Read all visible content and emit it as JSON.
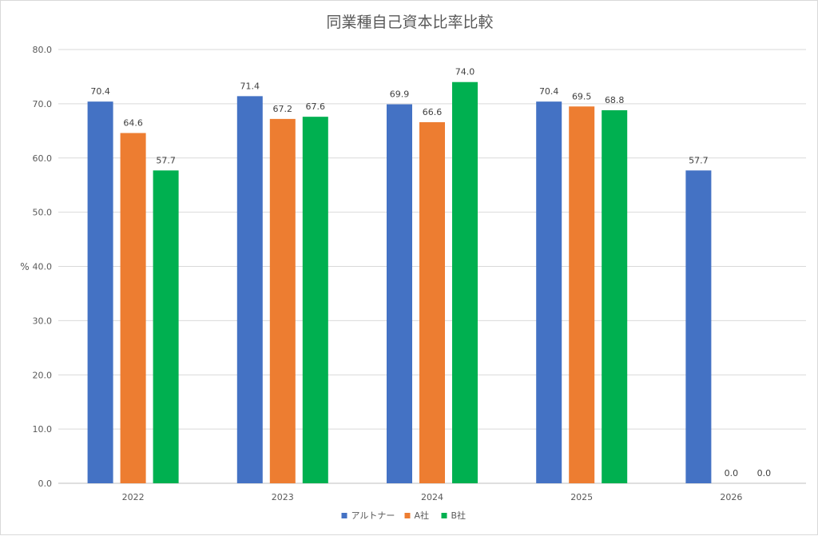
{
  "chart_data": {
    "type": "bar",
    "title": "同業種自己資本比率比較",
    "ylabel": "%",
    "xlabel": "",
    "categories": [
      "2022",
      "2023",
      "2024",
      "2025",
      "2026"
    ],
    "series": [
      {
        "name": "アルトナー",
        "color": "#4472C4",
        "values": [
          70.4,
          71.4,
          69.9,
          70.4,
          57.7
        ]
      },
      {
        "name": "A社",
        "color": "#ED7D31",
        "values": [
          64.6,
          67.2,
          66.6,
          69.5,
          0.0
        ]
      },
      {
        "name": "B社",
        "color": "#00B050",
        "values": [
          57.7,
          67.6,
          74.0,
          68.8,
          0.0
        ]
      }
    ],
    "ylim": [
      0,
      80
    ],
    "yticks": [
      "0.0",
      "10.0",
      "20.0",
      "30.0",
      "40.0",
      "50.0",
      "60.0",
      "70.0",
      "80.0"
    ],
    "grid": true,
    "legend_position": "bottom",
    "data_labels": true
  }
}
